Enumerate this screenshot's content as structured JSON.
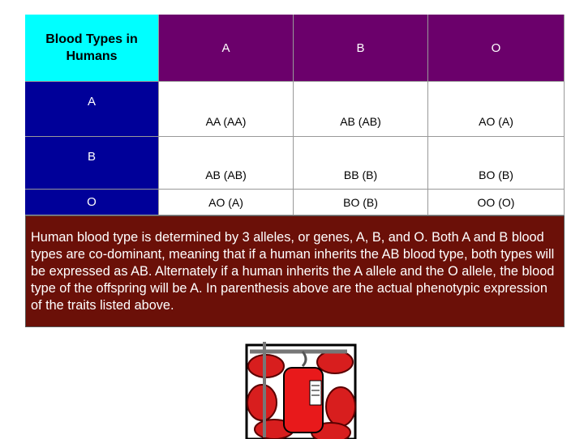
{
  "table": {
    "header": [
      "Blood Types in Humans",
      "A",
      "B",
      "O"
    ],
    "rows": [
      [
        "A",
        "AA (AA)",
        "AB (AB)",
        "AO (A)"
      ],
      [
        "B",
        "AB (AB)",
        "BB (B)",
        "BO (B)"
      ],
      [
        "O",
        "AO (A)",
        "BO (B)",
        "OO (O)"
      ]
    ]
  },
  "caption": "Human blood type is determined by 3 alleles, or genes, A, B, and O. Both A and B blood types are co-dominant, meaning that if a human inherits the AB blood type, both types will be expressed as AB. Alternately if a human inherits the A allele and the O allele, the blood type of the offspring will be A. In parenthesis above are the actual phenotypic expression of the traits listed above."
}
